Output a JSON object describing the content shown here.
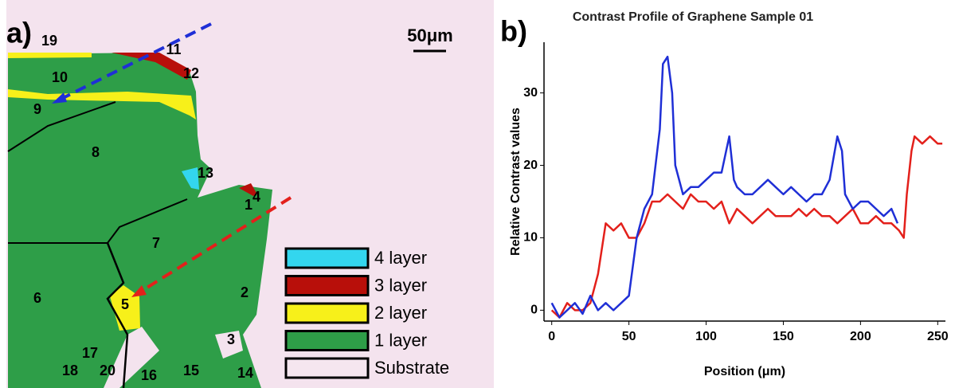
{
  "panel_a": {
    "label": "a)",
    "scale_bar": "50μm",
    "regions": [
      "1",
      "2",
      "3",
      "4",
      "5",
      "6",
      "7",
      "8",
      "9",
      "10",
      "11",
      "12",
      "13",
      "14",
      "15",
      "16",
      "17",
      "18",
      "19",
      "20"
    ],
    "legend": [
      {
        "text": "4 layer",
        "color": "#33d6ee"
      },
      {
        "text": "3 layer",
        "color": "#b80f0a"
      },
      {
        "text": "2 layer",
        "color": "#f7f01a"
      },
      {
        "text": "1 layer",
        "color": "#2e9e48"
      },
      {
        "text": "Substrate",
        "color": "#f5e6ef"
      }
    ]
  },
  "panel_b": {
    "label": "b)"
  },
  "chart_data": {
    "type": "line",
    "title": "Contrast Profile of Graphene Sample 01",
    "x_label": "Position (μm)",
    "y_label": "Relative Contrast values",
    "xlim": [
      -5,
      255
    ],
    "ylim": [
      -1.5,
      37
    ],
    "xticks": [
      0,
      50,
      100,
      150,
      200,
      250
    ],
    "yticks": [
      0,
      10,
      20,
      30
    ],
    "series": [
      {
        "color": "#e3201b",
        "x": [
          0,
          5,
          10,
          15,
          20,
          25,
          30,
          35,
          40,
          45,
          50,
          55,
          60,
          65,
          70,
          75,
          80,
          85,
          90,
          95,
          100,
          105,
          110,
          115,
          120,
          125,
          130,
          135,
          140,
          145,
          150,
          155,
          160,
          165,
          170,
          175,
          180,
          185,
          190,
          195,
          200,
          205,
          210,
          215,
          220,
          225,
          228,
          230,
          233,
          235,
          240,
          245,
          250,
          253
        ],
        "values": [
          0,
          -1,
          1,
          0,
          0,
          1,
          5,
          12,
          11,
          12,
          10,
          10,
          12,
          15,
          15,
          16,
          15,
          14,
          16,
          15,
          15,
          14,
          15,
          12,
          14,
          13,
          12,
          13,
          14,
          13,
          13,
          13,
          14,
          13,
          14,
          13,
          13,
          12,
          13,
          14,
          12,
          12,
          13,
          12,
          12,
          11,
          10,
          16,
          22,
          24,
          23,
          24,
          23,
          23
        ]
      },
      {
        "color": "#1f2fd6",
        "x": [
          0,
          5,
          10,
          15,
          20,
          25,
          30,
          35,
          40,
          45,
          50,
          55,
          60,
          65,
          70,
          72,
          75,
          78,
          80,
          85,
          90,
          95,
          100,
          105,
          110,
          113,
          115,
          118,
          120,
          125,
          130,
          135,
          140,
          145,
          150,
          155,
          160,
          165,
          170,
          175,
          180,
          185,
          188,
          190,
          195,
          200,
          205,
          210,
          215,
          220,
          224
        ],
        "values": [
          1,
          -1,
          0,
          1,
          -0.5,
          2,
          0,
          1,
          0,
          1,
          2,
          10,
          14,
          16,
          25,
          34,
          35,
          30,
          20,
          16,
          17,
          17,
          18,
          19,
          19,
          22,
          24,
          18,
          17,
          16,
          16,
          17,
          18,
          17,
          16,
          17,
          16,
          15,
          16,
          16,
          18,
          24,
          22,
          16,
          14,
          15,
          15,
          14,
          13,
          14,
          12
        ]
      }
    ]
  }
}
